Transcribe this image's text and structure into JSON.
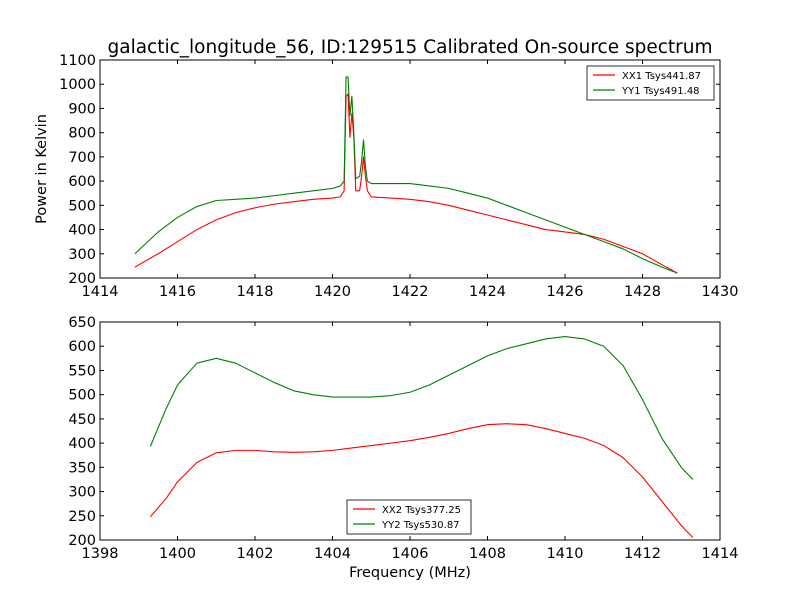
{
  "figure": {
    "title": "galactic_longitude_56, ID:129515 Calibrated On-source spectrum"
  },
  "chart_data": [
    {
      "type": "line",
      "title": "galactic_longitude_56, ID:129515 Calibrated On-source spectrum",
      "xlabel": "",
      "ylabel": "Power in Kelvin",
      "xlim": [
        1414,
        1430
      ],
      "ylim": [
        200,
        1100
      ],
      "xticks": [
        1414,
        1416,
        1418,
        1420,
        1422,
        1424,
        1426,
        1428,
        1430
      ],
      "yticks": [
        200,
        300,
        400,
        500,
        600,
        700,
        800,
        900,
        1000,
        1100
      ],
      "grid": false,
      "legend_position": "top-right",
      "series": [
        {
          "name": "XX1 Tsys441.87",
          "color": "#ff0000",
          "x": [
            1414.9,
            1415.5,
            1416.0,
            1416.5,
            1417.0,
            1417.5,
            1418.0,
            1418.5,
            1419.0,
            1419.5,
            1420.0,
            1420.2,
            1420.3,
            1420.35,
            1420.4,
            1420.45,
            1420.5,
            1420.55,
            1420.6,
            1420.7,
            1420.75,
            1420.8,
            1420.85,
            1420.9,
            1421.0,
            1421.5,
            1422.0,
            1422.5,
            1423.0,
            1423.5,
            1424.0,
            1424.5,
            1425.0,
            1425.5,
            1426.0,
            1426.5,
            1427.0,
            1427.5,
            1428.0,
            1428.5,
            1428.9
          ],
          "y": [
            245,
            300,
            350,
            400,
            440,
            470,
            490,
            505,
            515,
            525,
            530,
            535,
            560,
            950,
            960,
            780,
            880,
            780,
            560,
            560,
            620,
            700,
            620,
            560,
            535,
            530,
            525,
            515,
            500,
            480,
            460,
            440,
            420,
            400,
            390,
            380,
            360,
            330,
            300,
            255,
            220
          ]
        },
        {
          "name": "YY1 Tsys491.48",
          "color": "#008000",
          "x": [
            1414.9,
            1415.5,
            1416.0,
            1416.5,
            1417.0,
            1417.5,
            1418.0,
            1418.5,
            1419.0,
            1419.5,
            1420.0,
            1420.2,
            1420.3,
            1420.35,
            1420.4,
            1420.45,
            1420.5,
            1420.55,
            1420.6,
            1420.7,
            1420.75,
            1420.8,
            1420.85,
            1420.9,
            1421.0,
            1421.5,
            1422.0,
            1422.5,
            1423.0,
            1423.5,
            1424.0,
            1424.5,
            1425.0,
            1425.5,
            1426.0,
            1426.5,
            1427.0,
            1427.5,
            1428.0,
            1428.5,
            1428.9
          ],
          "y": [
            300,
            390,
            450,
            495,
            520,
            525,
            530,
            540,
            550,
            560,
            570,
            580,
            600,
            1030,
            1030,
            870,
            950,
            800,
            610,
            620,
            680,
            770,
            660,
            600,
            590,
            590,
            590,
            580,
            570,
            550,
            530,
            500,
            470,
            440,
            410,
            380,
            350,
            320,
            280,
            245,
            220
          ]
        }
      ]
    },
    {
      "type": "line",
      "title": "",
      "xlabel": "Frequency (MHz)",
      "ylabel": "",
      "xlim": [
        1398,
        1414
      ],
      "ylim": [
        200,
        650
      ],
      "xticks": [
        1398,
        1400,
        1402,
        1404,
        1406,
        1408,
        1410,
        1412,
        1414
      ],
      "yticks": [
        200,
        250,
        300,
        350,
        400,
        450,
        500,
        550,
        600,
        650
      ],
      "grid": false,
      "legend_position": "bottom-center",
      "series": [
        {
          "name": "XX2 Tsys377.25",
          "color": "#ff0000",
          "x": [
            1399.3,
            1399.7,
            1400.0,
            1400.5,
            1401.0,
            1401.5,
            1402.0,
            1402.5,
            1403.0,
            1403.5,
            1404.0,
            1404.5,
            1405.0,
            1405.5,
            1406.0,
            1406.5,
            1407.0,
            1407.5,
            1408.0,
            1408.5,
            1409.0,
            1409.5,
            1410.0,
            1410.5,
            1411.0,
            1411.5,
            1412.0,
            1412.5,
            1413.0,
            1413.3
          ],
          "y": [
            248,
            285,
            320,
            360,
            380,
            385,
            385,
            382,
            381,
            382,
            385,
            390,
            395,
            400,
            405,
            412,
            420,
            430,
            438,
            440,
            438,
            430,
            420,
            410,
            395,
            370,
            330,
            280,
            230,
            205
          ]
        },
        {
          "name": "YY2 Tsys530.87",
          "color": "#008000",
          "x": [
            1399.3,
            1399.7,
            1400.0,
            1400.5,
            1401.0,
            1401.5,
            1402.0,
            1402.5,
            1403.0,
            1403.5,
            1404.0,
            1404.5,
            1405.0,
            1405.5,
            1406.0,
            1406.5,
            1407.0,
            1407.5,
            1408.0,
            1408.5,
            1409.0,
            1409.5,
            1410.0,
            1410.5,
            1411.0,
            1411.5,
            1412.0,
            1412.5,
            1413.0,
            1413.3
          ],
          "y": [
            393,
            470,
            520,
            565,
            575,
            565,
            545,
            525,
            508,
            500,
            495,
            495,
            495,
            498,
            505,
            520,
            540,
            560,
            580,
            595,
            605,
            615,
            620,
            615,
            600,
            560,
            490,
            410,
            350,
            325
          ]
        }
      ]
    }
  ]
}
